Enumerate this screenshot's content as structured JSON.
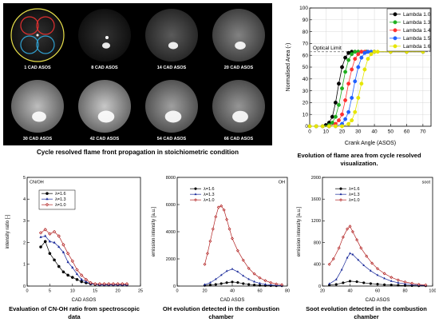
{
  "image_panel": {
    "frames": [
      {
        "label": "1 CAD ASOS",
        "brightness": 0.05,
        "glow": 0.0
      },
      {
        "label": "8 CAD ASOS",
        "brightness": 0.05,
        "glow": 0.15
      },
      {
        "label": "14 CAD ASOS",
        "brightness": 0.25,
        "glow": 0.3
      },
      {
        "label": "20 CAD ASOS",
        "brightness": 0.45,
        "glow": 0.4
      },
      {
        "label": "30 CAD ASOS",
        "brightness": 0.75,
        "glow": 0.7
      },
      {
        "label": "42 CAD ASOS",
        "brightness": 0.8,
        "glow": 0.9
      },
      {
        "label": "54 CAD ASOS",
        "brightness": 0.6,
        "glow": 0.9
      },
      {
        "label": "66 CAD ASOS",
        "brightness": 0.55,
        "glow": 0.85
      }
    ],
    "caption": "Cycle resolved flame front propagation in stoichiometric condition"
  },
  "captions": {
    "flame_area": "Evolution of flame area from cycle resolved visualization.",
    "cnoh": "Evaluation of CN-OH ratio from spectroscopic data",
    "oh": "OH evolution detected in the combustion chamber",
    "soot": "Soot evolution detected in the combustion chamber"
  },
  "chart_data": [
    {
      "id": "flame-area",
      "type": "line",
      "xlabel": "Crank Angle (ASOS)",
      "ylabel": "Normalised Area (-)",
      "xlim": [
        0,
        75
      ],
      "ylim": [
        0,
        100
      ],
      "xticks": [
        0,
        10,
        20,
        30,
        40,
        50,
        60,
        70
      ],
      "yticks": [
        0,
        10,
        20,
        30,
        40,
        50,
        60,
        70,
        80,
        90,
        100
      ],
      "annotation": "Optical Limit",
      "optical_limit": 63,
      "legend": "top-right",
      "series": [
        {
          "name": "Lambda 1.0",
          "color": "#000000",
          "mid": 17,
          "x": [
            0,
            4,
            8,
            10,
            12,
            14,
            16,
            18,
            20,
            22,
            24,
            26,
            28,
            30,
            35,
            40,
            50,
            60,
            70
          ],
          "y": [
            0,
            0,
            0,
            1,
            3,
            8,
            20,
            36,
            50,
            58,
            62,
            63,
            63,
            63,
            63,
            63,
            63,
            63,
            63
          ]
        },
        {
          "name": "Lambda 1.3",
          "color": "#20b020",
          "mid": 20,
          "x": [
            0,
            4,
            8,
            12,
            14,
            16,
            18,
            20,
            22,
            24,
            26,
            28,
            30,
            32,
            35,
            40,
            50,
            60,
            70
          ],
          "y": [
            0,
            0,
            0,
            1,
            3,
            8,
            18,
            32,
            46,
            56,
            61,
            63,
            63,
            63,
            63,
            63,
            63,
            63,
            63
          ]
        },
        {
          "name": "Lambda 1.4",
          "color": "#ff3030",
          "mid": 23,
          "x": [
            0,
            4,
            8,
            12,
            16,
            18,
            20,
            22,
            24,
            26,
            28,
            30,
            32,
            34,
            36,
            40,
            50,
            60,
            70
          ],
          "y": [
            0,
            0,
            0,
            0,
            2,
            5,
            10,
            22,
            36,
            48,
            57,
            61,
            63,
            63,
            63,
            63,
            63,
            63,
            63
          ]
        },
        {
          "name": "Lambda 1.5",
          "color": "#2060ff",
          "mid": 26,
          "x": [
            0,
            4,
            8,
            12,
            16,
            20,
            22,
            24,
            26,
            28,
            30,
            32,
            34,
            36,
            38,
            40,
            50,
            60,
            70
          ],
          "y": [
            0,
            0,
            0,
            0,
            0,
            2,
            6,
            12,
            24,
            38,
            50,
            58,
            62,
            63,
            63,
            63,
            63,
            63,
            63
          ]
        },
        {
          "name": "Lambda 1.6",
          "color": "#e6e600",
          "mid": 30,
          "x": [
            0,
            4,
            8,
            12,
            16,
            20,
            24,
            26,
            28,
            30,
            32,
            34,
            36,
            38,
            40,
            42,
            50,
            60,
            70
          ],
          "y": [
            0,
            0,
            0,
            0,
            0,
            0,
            2,
            5,
            12,
            24,
            36,
            48,
            57,
            61,
            63,
            63,
            63,
            63,
            63
          ]
        }
      ]
    },
    {
      "id": "cnoh",
      "type": "line",
      "title": "CN/OH",
      "xlabel": "CAD ASOS",
      "ylabel": "intensity ratio [-]",
      "xlim": [
        0,
        25
      ],
      "ylim": [
        0,
        5
      ],
      "xticks": [
        0,
        5,
        10,
        15,
        20,
        25
      ],
      "yticks": [
        0,
        1,
        2,
        3,
        4,
        5
      ],
      "legend": "top-left",
      "series": [
        {
          "name": "λ=1.6",
          "color": "#000000",
          "marker": "circle",
          "x": [
            3,
            4,
            5,
            6,
            7,
            8,
            9,
            10,
            11,
            12,
            13,
            14,
            15,
            16,
            17,
            18,
            19,
            20,
            21,
            22
          ],
          "y": [
            1.8,
            2.05,
            1.5,
            1.2,
            0.9,
            0.65,
            0.5,
            0.4,
            0.3,
            0.2,
            0.15,
            0.1,
            0.08,
            0.05,
            0.05,
            0.05,
            0.05,
            0.05,
            0.05,
            0.05
          ]
        },
        {
          "name": "λ=1.3",
          "color": "#1a2a9a",
          "marker": "triangle",
          "x": [
            3,
            4,
            5,
            6,
            7,
            8,
            9,
            10,
            11,
            12,
            13,
            14,
            15,
            16,
            17,
            18,
            19,
            20,
            21,
            22
          ],
          "y": [
            2.25,
            2.3,
            2.05,
            2.0,
            1.8,
            1.55,
            1.1,
            0.85,
            0.55,
            0.3,
            0.2,
            0.1,
            0.08,
            0.05,
            0.05,
            0.05,
            0.05,
            0.05,
            0.05,
            0.05
          ]
        },
        {
          "name": "λ=1.0",
          "color": "#b22222",
          "marker": "diamond",
          "x": [
            3,
            4,
            5,
            6,
            7,
            8,
            9,
            10,
            11,
            12,
            13,
            14,
            15,
            16,
            17,
            18,
            19,
            20,
            21,
            22
          ],
          "y": [
            2.45,
            2.6,
            2.4,
            2.5,
            2.3,
            1.9,
            1.5,
            1.15,
            0.75,
            0.5,
            0.3,
            0.15,
            0.1,
            0.1,
            0.1,
            0.1,
            0.1,
            0.1,
            0.1,
            0.1
          ]
        }
      ]
    },
    {
      "id": "oh",
      "type": "line",
      "title": "OH",
      "xlabel": "CAD ASOS",
      "ylabel": "emission intensity [a.u.]",
      "xlim": [
        0,
        80
      ],
      "ylim": [
        0,
        8000
      ],
      "xticks": [
        0,
        20,
        40,
        60,
        80
      ],
      "yticks": [
        0,
        2000,
        4000,
        6000,
        8000
      ],
      "legend": "top-left",
      "series": [
        {
          "name": "λ=1.6",
          "color": "#000000",
          "marker": "circle",
          "x": [
            20,
            24,
            28,
            32,
            36,
            40,
            44,
            48,
            52,
            56,
            60,
            64,
            68,
            72,
            76
          ],
          "y": [
            50,
            80,
            120,
            180,
            250,
            300,
            260,
            180,
            120,
            80,
            50,
            40,
            30,
            20,
            20
          ]
        },
        {
          "name": "λ=1.3",
          "color": "#1a2a9a",
          "marker": "triangle",
          "x": [
            20,
            24,
            28,
            32,
            36,
            40,
            44,
            48,
            52,
            56,
            60,
            64,
            68,
            72,
            76
          ],
          "y": [
            100,
            250,
            500,
            800,
            1100,
            1250,
            1050,
            750,
            500,
            320,
            200,
            120,
            80,
            50,
            30
          ]
        },
        {
          "name": "λ=1.0",
          "color": "#b22222",
          "marker": "diamond",
          "x": [
            20,
            22,
            24,
            26,
            28,
            30,
            32,
            34,
            36,
            38,
            40,
            44,
            48,
            52,
            56,
            60,
            64,
            68,
            72,
            76
          ],
          "y": [
            1600,
            2400,
            3300,
            4200,
            5100,
            5800,
            5900,
            5600,
            4900,
            4200,
            3500,
            2600,
            1900,
            1300,
            900,
            600,
            400,
            250,
            150,
            100
          ]
        }
      ]
    },
    {
      "id": "soot",
      "type": "line",
      "title": "soot",
      "xlabel": "CAD ASOS",
      "ylabel": "emission intensity [a.u.]",
      "xlim": [
        20,
        100
      ],
      "ylim": [
        0,
        2000
      ],
      "xticks": [
        20,
        40,
        60,
        80,
        100
      ],
      "yticks": [
        0,
        400,
        800,
        1200,
        1600,
        2000
      ],
      "legend": "top-left",
      "series": [
        {
          "name": "λ=1.6",
          "color": "#000000",
          "marker": "circle",
          "x": [
            25,
            30,
            35,
            40,
            45,
            50,
            55,
            60,
            65,
            70,
            75,
            80,
            85,
            90,
            95
          ],
          "y": [
            20,
            30,
            60,
            90,
            80,
            60,
            45,
            35,
            25,
            20,
            15,
            10,
            8,
            5,
            5
          ]
        },
        {
          "name": "λ=1.3",
          "color": "#1a2a9a",
          "marker": "triangle",
          "x": [
            25,
            30,
            34,
            38,
            40,
            42,
            46,
            50,
            55,
            60,
            65,
            70,
            75,
            80,
            85,
            90,
            95
          ],
          "y": [
            40,
            120,
            300,
            520,
            600,
            580,
            480,
            380,
            280,
            200,
            140,
            90,
            60,
            40,
            25,
            15,
            10
          ]
        },
        {
          "name": "λ=1.0",
          "color": "#b22222",
          "marker": "diamond",
          "x": [
            25,
            28,
            32,
            35,
            38,
            40,
            42,
            45,
            48,
            52,
            56,
            60,
            65,
            70,
            75,
            80,
            85,
            90,
            95
          ],
          "y": [
            400,
            500,
            700,
            900,
            1050,
            1100,
            1000,
            850,
            700,
            550,
            420,
            320,
            230,
            160,
            110,
            75,
            50,
            30,
            20
          ]
        }
      ]
    }
  ]
}
